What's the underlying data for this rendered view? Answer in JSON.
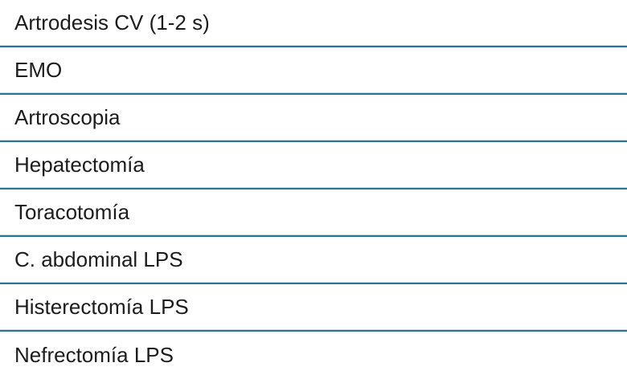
{
  "table": {
    "rows": [
      {
        "label": "Artrodesis CV (1-2 s)"
      },
      {
        "label": "EMO"
      },
      {
        "label": "Artroscopia"
      },
      {
        "label": "Hepatectomía"
      },
      {
        "label": "Toracotomía"
      },
      {
        "label": "C. abdominal LPS"
      },
      {
        "label": "Histerectomía LPS"
      },
      {
        "label": "Nefrectomía LPS"
      }
    ],
    "colors": {
      "divider_teal": "#26759a",
      "divider_light": "#ccd9e3",
      "text": "#1c1c1c",
      "background": "#ffffff"
    }
  }
}
